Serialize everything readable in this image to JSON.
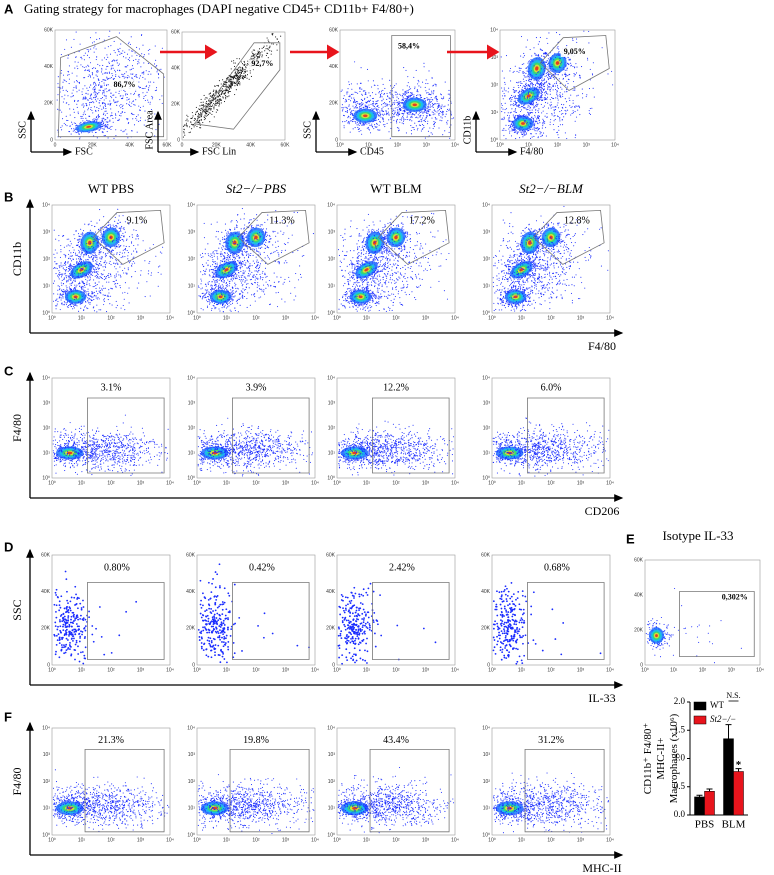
{
  "panel_labels": [
    "A",
    "B",
    "C",
    "D",
    "E",
    "F"
  ],
  "panel_a": {
    "title": "Gating strategy for macrophages (DAPI negative CD45+ CD11b+ F4/80+)",
    "plots": [
      {
        "x_label": "FSC",
        "y_label": "SSC",
        "gate": "86,7%"
      },
      {
        "x_label": "FSC Lin",
        "y_label": "FSC Area",
        "gate": "92,7%"
      },
      {
        "x_label": "CD45",
        "y_label": "SSC",
        "gate": "58,4%"
      },
      {
        "x_label": "F4/80",
        "y_label": "CD11b",
        "gate": "9,05%"
      }
    ]
  },
  "groups": [
    "WT PBS",
    "St2−/−PBS",
    "WT BLM",
    "St2−/−BLM"
  ],
  "panel_b": {
    "y_label": "CD11b",
    "x_label": "F4/80",
    "gates": [
      "9.1%",
      "11.3%",
      "17.2%",
      "12.8%"
    ]
  },
  "panel_c": {
    "y_label": "F4/80",
    "x_label": "CD206",
    "gates": [
      "3.1%",
      "3.9%",
      "12.2%",
      "6.0%"
    ]
  },
  "panel_d": {
    "y_label": "SSC",
    "x_label": "IL-33",
    "gates": [
      "0.80%",
      "0.42%",
      "2.42%",
      "0.68%"
    ]
  },
  "panel_e": {
    "title": "Isotype IL-33",
    "gate": "0,302%"
  },
  "panel_f": {
    "y_label": "F4/80",
    "x_label": "MHC-II",
    "gates": [
      "21.3%",
      "19.8%",
      "43.4%",
      "31.2%"
    ]
  },
  "axis_ticks": {
    "linear": [
      "0",
      "20K",
      "40K",
      "60K"
    ],
    "log": [
      "10⁰",
      "10¹",
      "10²",
      "10³",
      "10⁴"
    ]
  },
  "chart_data": {
    "type": "bar",
    "y_label": [
      "CD11b⁺ F4/80⁺",
      "MHC-II+",
      "Macrophages (x10⁶)"
    ],
    "categories": [
      "PBS",
      "BLM"
    ],
    "series": [
      {
        "name": "WT",
        "color": "#000000",
        "values": [
          0.32,
          1.35
        ],
        "errors": [
          0.03,
          0.25
        ]
      },
      {
        "name": "St2−/−",
        "color": "#e8141c",
        "values": [
          0.42,
          0.77
        ],
        "errors": [
          0.04,
          0.05
        ]
      }
    ],
    "ylim": [
      0,
      2
    ],
    "yticks": [
      {
        "value": 0,
        "label": "0.0"
      },
      0.5,
      {
        "value": 1,
        "label": "1.0"
      },
      1.5,
      {
        "value": 2,
        "label": "2.0"
      }
    ],
    "annotations": [
      "*",
      "*",
      "N.S."
    ]
  }
}
